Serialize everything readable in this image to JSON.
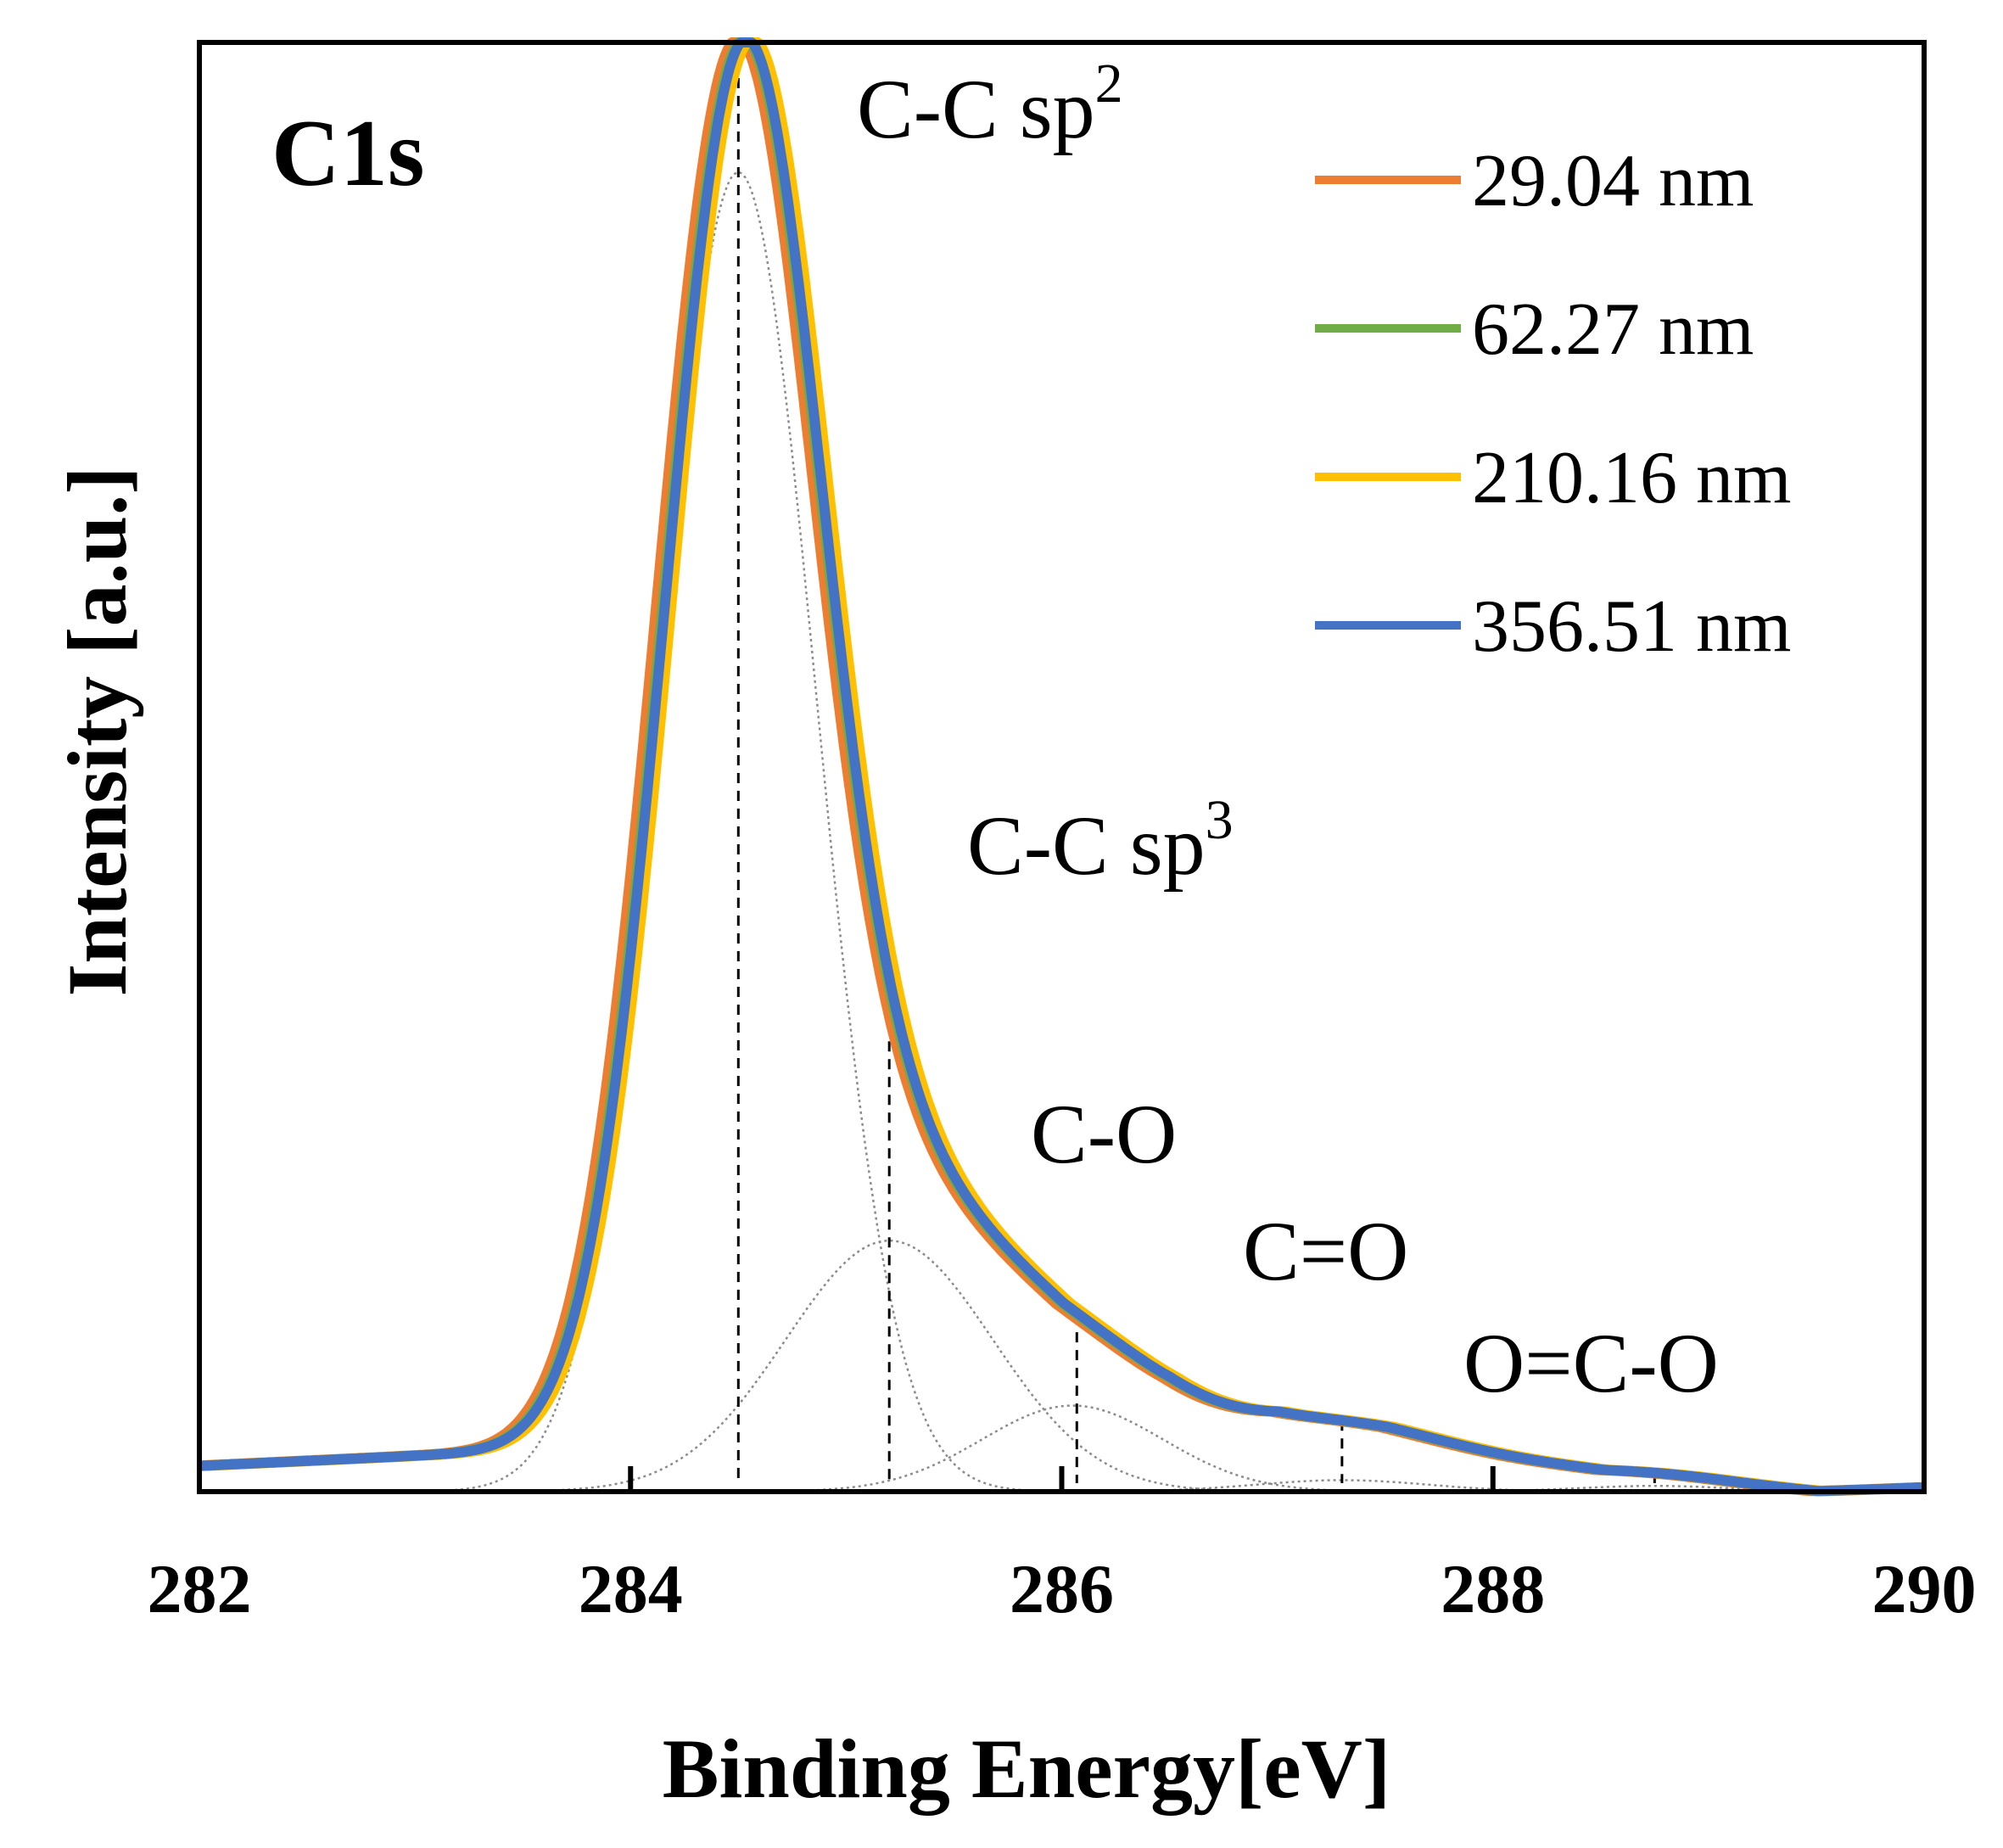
{
  "chart_data": {
    "type": "line",
    "title": "",
    "region_label": "C1s",
    "xlabel": "Binding Energy[eV]",
    "ylabel": "Intensity [a.u.]",
    "xlim": [
      282,
      290
    ],
    "ylim": [
      0,
      1
    ],
    "x_ticks": [
      "282",
      "284",
      "286",
      "288",
      "290"
    ],
    "grid": false,
    "legend_position": "top-right",
    "series": [
      {
        "name": "29.04 nm",
        "color": "#ED7D31",
        "shift": -0.03
      },
      {
        "name": "62.27 nm",
        "color": "#70AD47",
        "shift": 0.0
      },
      {
        "name": "210.16 nm",
        "color": "#FFC000",
        "shift": 0.04
      },
      {
        "name": "356.51 nm",
        "color": "#4472C4",
        "shift": 0.01
      }
    ],
    "envelope_model": {
      "baseline": [
        [
          282.0,
          0.018
        ],
        [
          283.0,
          0.025
        ],
        [
          284.0,
          0.03
        ],
        [
          285.0,
          0.03
        ],
        [
          286.0,
          0.028
        ],
        [
          286.5,
          0.04
        ],
        [
          287.0,
          0.045
        ],
        [
          287.5,
          0.038
        ],
        [
          288.0,
          0.025
        ],
        [
          288.5,
          0.012
        ],
        [
          289.0,
          0.006
        ],
        [
          289.5,
          0.0
        ],
        [
          290.0,
          0.003
        ]
      ],
      "components": [
        {
          "name": "C-C sp2",
          "center": 284.5,
          "height": 0.92,
          "sigma": 0.36
        },
        {
          "name": "C-C sp3",
          "center": 285.2,
          "height": 0.175,
          "sigma": 0.48
        },
        {
          "name": "C-O",
          "center": 286.05,
          "height": 0.06,
          "sigma": 0.42
        },
        {
          "name": "C=O",
          "center": 287.3,
          "height": 0.008,
          "sigma": 0.4
        },
        {
          "name": "O=C-O",
          "center": 288.75,
          "height": 0.004,
          "sigma": 0.35
        }
      ]
    },
    "peak_markers": [
      {
        "label": "C-C sp",
        "superscript": "2",
        "position": 284.5
      },
      {
        "label": "C-C sp",
        "superscript": "3",
        "position": 285.2
      },
      {
        "label": "C-O",
        "superscript": "",
        "position": 286.07
      },
      {
        "label": "C=O",
        "superscript": "",
        "position": 287.3
      },
      {
        "label": "O=C-O",
        "superscript": "",
        "position": 288.75
      }
    ]
  }
}
